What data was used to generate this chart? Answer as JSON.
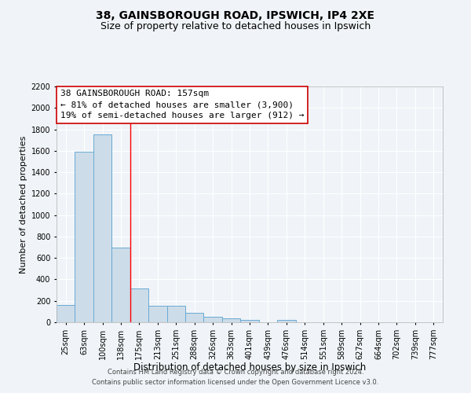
{
  "title": "38, GAINSBOROUGH ROAD, IPSWICH, IP4 2XE",
  "subtitle": "Size of property relative to detached houses in Ipswich",
  "xlabel": "Distribution of detached houses by size in Ipswich",
  "ylabel": "Number of detached properties",
  "categories": [
    "25sqm",
    "63sqm",
    "100sqm",
    "138sqm",
    "175sqm",
    "213sqm",
    "251sqm",
    "288sqm",
    "326sqm",
    "363sqm",
    "401sqm",
    "439sqm",
    "476sqm",
    "514sqm",
    "551sqm",
    "589sqm",
    "627sqm",
    "664sqm",
    "702sqm",
    "739sqm",
    "777sqm"
  ],
  "values": [
    160,
    1590,
    1750,
    700,
    315,
    155,
    155,
    85,
    50,
    35,
    20,
    0,
    20,
    0,
    0,
    0,
    0,
    0,
    0,
    0,
    0
  ],
  "bar_color": "#ccdce8",
  "bar_edge_color": "#6aaad4",
  "red_line_x": 3.5,
  "annotation_lines": [
    "38 GAINSBOROUGH ROAD: 157sqm",
    "← 81% of detached houses are smaller (3,900)",
    "19% of semi-detached houses are larger (912) →"
  ],
  "annotation_box_color": "#ffffff",
  "annotation_box_edge": "#cc0000",
  "footer_line1": "Contains HM Land Registry data © Crown copyright and database right 2024.",
  "footer_line2": "Contains public sector information licensed under the Open Government Licence v3.0.",
  "ylim": [
    0,
    2200
  ],
  "yticks": [
    0,
    200,
    400,
    600,
    800,
    1000,
    1200,
    1400,
    1600,
    1800,
    2000,
    2200
  ],
  "background_color": "#f0f4f8",
  "grid_color": "#ffffff",
  "title_fontsize": 10,
  "subtitle_fontsize": 9,
  "xlabel_fontsize": 8.5,
  "ylabel_fontsize": 8,
  "tick_fontsize": 7,
  "annotation_fontsize": 8,
  "footer_fontsize": 6
}
